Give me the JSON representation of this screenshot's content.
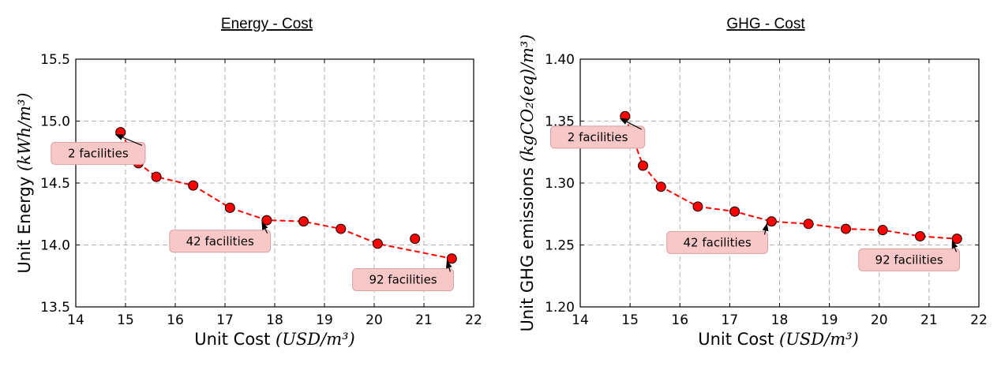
{
  "chart_data": [
    {
      "type": "scatter",
      "title": "Energy - Cost",
      "xlabel_text": "Unit Cost ",
      "xlabel_math": "(USD/m³)",
      "ylabel_text": "Unit Energy ",
      "ylabel_math": "(kWh/m³)",
      "xlim": [
        14,
        22
      ],
      "ylim": [
        13.5,
        15.5
      ],
      "xticks": [
        "14",
        "15",
        "16",
        "17",
        "18",
        "19",
        "20",
        "21",
        "22"
      ],
      "xtick_values": [
        14,
        15,
        16,
        17,
        18,
        19,
        20,
        21,
        22
      ],
      "yticks": [
        "13.5",
        "14.0",
        "14.5",
        "15.0",
        "15.5"
      ],
      "ytick_values": [
        13.5,
        14.0,
        14.5,
        15.0,
        15.5
      ],
      "grid": true,
      "line_color": "#ff0000",
      "marker_color": "#ff0000",
      "box_color": "#f8c8c8",
      "points": [
        {
          "x": 14.9,
          "y": 14.91,
          "on_line": true
        },
        {
          "x": 15.26,
          "y": 14.66,
          "on_line": true
        },
        {
          "x": 15.62,
          "y": 14.55,
          "on_line": true
        },
        {
          "x": 16.36,
          "y": 14.48,
          "on_line": true
        },
        {
          "x": 17.1,
          "y": 14.3,
          "on_line": true
        },
        {
          "x": 17.84,
          "y": 14.2,
          "on_line": true
        },
        {
          "x": 18.58,
          "y": 14.19,
          "on_line": true
        },
        {
          "x": 19.33,
          "y": 14.13,
          "on_line": true
        },
        {
          "x": 20.07,
          "y": 14.01,
          "on_line": true
        },
        {
          "x": 20.82,
          "y": 14.05,
          "on_line": false
        },
        {
          "x": 21.56,
          "y": 13.89,
          "on_line": true
        }
      ],
      "annotations": [
        {
          "text": "2 facilities",
          "target_x": 14.9,
          "target_y": 14.91,
          "label_x": 14.45,
          "label_y": 14.74
        },
        {
          "text": "42 facilities",
          "target_x": 17.84,
          "target_y": 14.2,
          "label_x": 16.9,
          "label_y": 14.03
        },
        {
          "text": "92 facilities",
          "target_x": 21.56,
          "target_y": 13.89,
          "label_x": 20.58,
          "label_y": 13.72
        }
      ]
    },
    {
      "type": "scatter",
      "title": "GHG - Cost",
      "xlabel_text": "Unit Cost ",
      "xlabel_math": "(USD/m³)",
      "ylabel_text": "Unit GHG emissions ",
      "ylabel_math": "(kgCO₂(eq)/m³)",
      "xlim": [
        14,
        22
      ],
      "ylim": [
        1.2,
        1.4
      ],
      "xticks": [
        "14",
        "15",
        "16",
        "17",
        "18",
        "19",
        "20",
        "21",
        "22"
      ],
      "xtick_values": [
        14,
        15,
        16,
        17,
        18,
        19,
        20,
        21,
        22
      ],
      "yticks": [
        "1.20",
        "1.25",
        "1.30",
        "1.35",
        "1.40"
      ],
      "ytick_values": [
        1.2,
        1.25,
        1.3,
        1.35,
        1.4
      ],
      "grid": true,
      "line_color": "#ff0000",
      "marker_color": "#ff0000",
      "box_color": "#f8c8c8",
      "points": [
        {
          "x": 14.9,
          "y": 1.354,
          "on_line": true
        },
        {
          "x": 15.26,
          "y": 1.314,
          "on_line": true
        },
        {
          "x": 15.62,
          "y": 1.297,
          "on_line": true
        },
        {
          "x": 16.36,
          "y": 1.281,
          "on_line": true
        },
        {
          "x": 17.1,
          "y": 1.277,
          "on_line": true
        },
        {
          "x": 17.84,
          "y": 1.269,
          "on_line": true
        },
        {
          "x": 18.58,
          "y": 1.267,
          "on_line": true
        },
        {
          "x": 19.33,
          "y": 1.263,
          "on_line": true
        },
        {
          "x": 20.07,
          "y": 1.262,
          "on_line": true
        },
        {
          "x": 20.82,
          "y": 1.257,
          "on_line": true
        },
        {
          "x": 21.56,
          "y": 1.255,
          "on_line": true
        }
      ],
      "annotations": [
        {
          "text": "2 facilities",
          "target_x": 14.9,
          "target_y": 1.354,
          "label_x": 14.35,
          "label_y": 1.337
        },
        {
          "text": "42 facilities",
          "target_x": 17.84,
          "target_y": 1.269,
          "label_x": 16.75,
          "label_y": 1.252
        },
        {
          "text": "92 facilities",
          "target_x": 21.56,
          "target_y": 1.255,
          "label_x": 20.6,
          "label_y": 1.238
        }
      ]
    }
  ]
}
